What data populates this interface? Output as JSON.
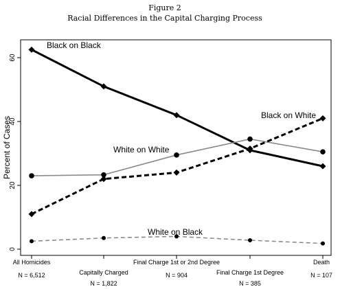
{
  "chart_data": {
    "type": "line",
    "title": "Figure 2",
    "subtitle": "Racial Differences in the Capital Charging Process",
    "ylabel": "Percent of Cases",
    "xlabel": "",
    "ylim": [
      0,
      65
    ],
    "yticks": [
      0,
      20,
      40,
      60
    ],
    "grid": false,
    "categories": [
      "All Homicides",
      "Capitally Charged",
      "Final Charge 1st or 2nd Degree",
      "Final Charge 1st Degree",
      "Death"
    ],
    "category_counts": [
      "N = 6,512",
      "N = 1,822",
      "N = 904",
      "N = 385",
      "N = 107"
    ],
    "series": [
      {
        "name": "Black on Black",
        "values": [
          62.5,
          51,
          42,
          31,
          26
        ],
        "color": "#000000",
        "dash": "solid",
        "marker": "diamond",
        "width": 3
      },
      {
        "name": "White on White",
        "values": [
          23,
          23.3,
          29.5,
          34.5,
          30.5
        ],
        "color": "#8a8a8a",
        "dash": "solid",
        "marker": "circle",
        "width": 1.6
      },
      {
        "name": "Black on White",
        "values": [
          11,
          22,
          24,
          31.5,
          41
        ],
        "color": "#000000",
        "dash": "dashed",
        "marker": "diamond",
        "width": 3
      },
      {
        "name": "White on Black",
        "values": [
          2.5,
          3.5,
          4,
          2.8,
          1.8
        ],
        "color": "#8a8a8a",
        "dash": "dashed",
        "marker": "circle",
        "width": 1.6
      }
    ]
  }
}
